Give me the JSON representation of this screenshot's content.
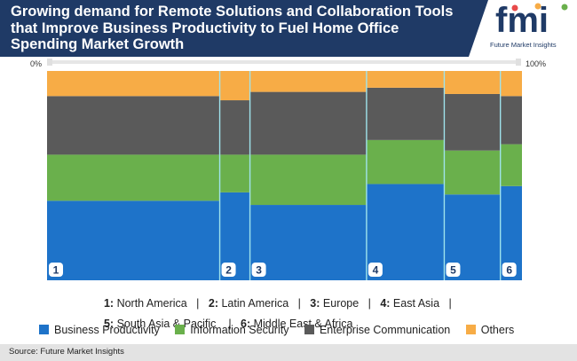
{
  "header": {
    "title": "Growing demand for Remote Solutions and Collaboration Tools that Improve Business Productivity to Fuel Home Office Spending Market Growth"
  },
  "logo": {
    "mark_text": "fmi",
    "company": "Future Market Insights"
  },
  "colors": {
    "business_productivity": "#1e73c9",
    "information_security": "#6ab04c",
    "enterprise_communication": "#5a5a5a",
    "others": "#f7ac46",
    "header": "#1f3a66",
    "separator": "#9fe3ec"
  },
  "region_legend": {
    "row1": [
      {
        "num": "1",
        "name": "North America"
      },
      {
        "num": "2",
        "name": "Latin America"
      },
      {
        "num": "3",
        "name": "Europe"
      },
      {
        "num": "4",
        "name": "East Asia"
      }
    ],
    "row2": [
      {
        "num": "5",
        "name": "South Asia & Pacific"
      },
      {
        "num": "6",
        "name": "Middle East & Africa"
      }
    ]
  },
  "chart_data": {
    "type": "bar",
    "subtype": "marimekko",
    "x_axis_labels": [
      "0%",
      "100%"
    ],
    "ylim": [
      0,
      100
    ],
    "categories": [
      "1",
      "2",
      "3",
      "4",
      "5",
      "6"
    ],
    "widths": [
      40,
      7,
      27,
      18,
      13,
      5
    ],
    "series": [
      {
        "name": "Business Productivity",
        "values": [
          38,
          42,
          36,
          46,
          41,
          45
        ]
      },
      {
        "name": "Information Security",
        "values": [
          22,
          18,
          24,
          21,
          21,
          20
        ]
      },
      {
        "name": "Enterprise Communication",
        "values": [
          28,
          26,
          30,
          25,
          27,
          23
        ]
      },
      {
        "name": "Others",
        "values": [
          12,
          14,
          10,
          8,
          11,
          12
        ]
      }
    ],
    "legend_position": "bottom",
    "grid": false
  },
  "source": "Source: Future Market Insights"
}
